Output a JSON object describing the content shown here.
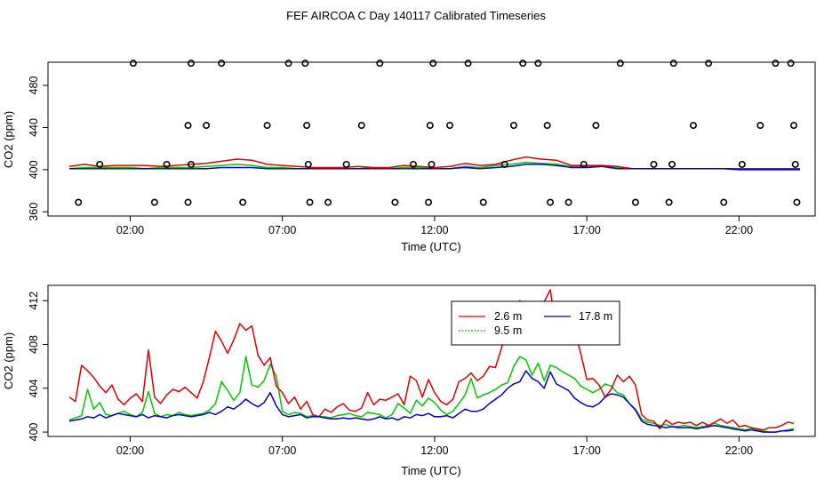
{
  "title": "FEF AIRCOA C  Day 140117  Calibrated Timeseries",
  "colors": {
    "s1": "#e00000",
    "s2": "#00c800",
    "s3": "#0000c8",
    "axis": "#000000"
  },
  "chart_data": [
    {
      "type": "line",
      "title": "",
      "xlabel": "Time (UTC)",
      "ylabel": "CO2 (ppm)",
      "xlim": [
        -0.7,
        24.5
      ],
      "ylim": [
        356,
        502
      ],
      "x_ticks": [
        2,
        7,
        12,
        17,
        22
      ],
      "x_tick_labels": [
        "02:00",
        "07:00",
        "12:00",
        "17:00",
        "22:00"
      ],
      "y_ticks": [
        360,
        400,
        440,
        480
      ],
      "y_tick_labels": [
        "360",
        "400",
        "440",
        "480"
      ],
      "calibration_points": {
        "marker": "open-circle",
        "x": [
          0.3,
          1.0,
          2.1,
          2.8,
          3.2,
          3.9,
          3.9,
          4.0,
          4.0,
          4.5,
          5.0,
          5.7,
          6.5,
          7.2,
          7.75,
          7.8,
          7.85,
          7.9,
          8.5,
          9.1,
          9.6,
          10.2,
          10.7,
          11.3,
          11.8,
          11.85,
          11.9,
          11.95,
          12.5,
          13.1,
          13.6,
          14.3,
          14.6,
          14.9,
          15.4,
          15.7,
          15.8,
          16.4,
          16.9,
          17.3,
          18.1,
          18.6,
          19.2,
          19.7,
          19.8,
          19.85,
          20.5,
          21.0,
          21.5,
          22.1,
          22.7,
          23.2,
          23.7,
          23.8,
          23.85,
          23.9
        ],
        "y": [
          369,
          405,
          501,
          369,
          405,
          369,
          442,
          405,
          501,
          442,
          501,
          369,
          442,
          501,
          501,
          442,
          405,
          369,
          369,
          405,
          442,
          501,
          369,
          405,
          369,
          442,
          405,
          501,
          442,
          501,
          369,
          405,
          442,
          501,
          501,
          442,
          369,
          369,
          405,
          442,
          501,
          369,
          405,
          369,
          405,
          501,
          442,
          501,
          369,
          405,
          442,
          501,
          501,
          442,
          405,
          369
        ]
      },
      "x": [
        0.0,
        0.5,
        1.0,
        1.5,
        2.0,
        2.5,
        3.0,
        3.5,
        4.0,
        4.5,
        5.0,
        5.5,
        6.0,
        6.5,
        7.0,
        7.5,
        8.0,
        8.5,
        9.0,
        9.5,
        10.0,
        10.5,
        11.0,
        11.5,
        12.0,
        12.5,
        13.0,
        13.5,
        14.0,
        14.5,
        15.0,
        15.5,
        16.0,
        16.5,
        17.0,
        17.5,
        18.0,
        18.5,
        19.0,
        19.5,
        20.0,
        20.5,
        21.0,
        21.5,
        22.0,
        22.5,
        23.0,
        23.5,
        24.0
      ],
      "series": [
        {
          "name": "2.6 m",
          "values": [
            403,
            405,
            403,
            404,
            404,
            404,
            403,
            404,
            405,
            406,
            408,
            410,
            409,
            405,
            404,
            403,
            402,
            402,
            402,
            403,
            402,
            402,
            404,
            403,
            402,
            403,
            406,
            404,
            405,
            409,
            412,
            410,
            409,
            404,
            404,
            404,
            403,
            401,
            401,
            401,
            401,
            401,
            401,
            401,
            401,
            401,
            401,
            401,
            401
          ]
        },
        {
          "name": "9.5 m",
          "values": [
            401,
            402,
            402,
            402,
            402,
            401,
            402,
            402,
            402,
            403,
            404,
            405,
            404,
            402,
            402,
            401,
            401,
            401,
            401,
            401,
            402,
            401,
            402,
            402,
            401,
            401,
            403,
            402,
            404,
            405,
            407,
            406,
            405,
            403,
            403,
            404,
            402,
            401,
            401,
            401,
            401,
            401,
            401,
            401,
            400,
            400,
            400,
            400,
            400
          ]
        },
        {
          "name": "17.8 m",
          "values": [
            401,
            401,
            401,
            401,
            401,
            401,
            401,
            401,
            401,
            401,
            402,
            402,
            402,
            401,
            401,
            401,
            401,
            401,
            401,
            401,
            401,
            401,
            401,
            401,
            401,
            401,
            402,
            401,
            402,
            403,
            405,
            405,
            404,
            402,
            402,
            403,
            401,
            401,
            401,
            401,
            401,
            401,
            401,
            401,
            400,
            400,
            400,
            400,
            400
          ]
        }
      ]
    },
    {
      "type": "line",
      "title": "",
      "xlabel": "Time (UTC)",
      "ylabel": "CO2 (ppm)",
      "xlim": [
        -0.7,
        24.5
      ],
      "ylim": [
        399.6,
        413.4
      ],
      "x_ticks": [
        2,
        7,
        12,
        17,
        22
      ],
      "x_tick_labels": [
        "02:00",
        "07:00",
        "12:00",
        "17:00",
        "22:00"
      ],
      "y_ticks": [
        400,
        404,
        408,
        412
      ],
      "y_tick_labels": [
        "400",
        "404",
        "408",
        "412"
      ],
      "legend": {
        "position": "top-right-inset",
        "entries": [
          "2.6 m",
          "17.8 m",
          "9.5 m"
        ]
      },
      "x": [
        0.0,
        0.2,
        0.4,
        0.6,
        0.8,
        1.0,
        1.2,
        1.4,
        1.6,
        1.8,
        2.0,
        2.2,
        2.4,
        2.6,
        2.8,
        3.0,
        3.2,
        3.4,
        3.6,
        3.8,
        4.0,
        4.2,
        4.4,
        4.6,
        4.8,
        5.0,
        5.2,
        5.4,
        5.6,
        5.8,
        6.0,
        6.2,
        6.4,
        6.6,
        6.8,
        7.0,
        7.2,
        7.4,
        7.6,
        7.8,
        8.0,
        8.2,
        8.4,
        8.6,
        8.8,
        9.0,
        9.2,
        9.4,
        9.6,
        9.8,
        10.0,
        10.2,
        10.4,
        10.6,
        10.8,
        11.0,
        11.2,
        11.4,
        11.6,
        11.8,
        12.0,
        12.2,
        12.4,
        12.6,
        12.8,
        13.0,
        13.2,
        13.4,
        13.6,
        13.8,
        14.0,
        14.2,
        14.4,
        14.6,
        14.8,
        15.0,
        15.2,
        15.4,
        15.6,
        15.8,
        16.0,
        16.2,
        16.4,
        16.6,
        16.8,
        17.0,
        17.2,
        17.4,
        17.6,
        17.8,
        18.0,
        18.2,
        18.4,
        18.6,
        18.8,
        19.0,
        19.2,
        19.4,
        19.6,
        19.8,
        20.0,
        20.2,
        20.4,
        20.6,
        20.8,
        21.0,
        21.2,
        21.4,
        21.6,
        21.8,
        22.0,
        22.2,
        22.4,
        22.6,
        22.8,
        23.0,
        23.2,
        23.4,
        23.6,
        23.8
      ],
      "series": [
        {
          "name": "2.6 m",
          "values": [
            403.2,
            402.8,
            406.1,
            405.6,
            405.0,
            404.2,
            403.6,
            404.3,
            403.0,
            402.5,
            403.1,
            403.5,
            402.8,
            407.5,
            403.2,
            402.6,
            403.4,
            403.9,
            403.7,
            404.1,
            403.6,
            403.1,
            404.6,
            406.8,
            409.2,
            408.3,
            407.2,
            408.4,
            409.9,
            409.3,
            409.7,
            407.0,
            406.1,
            406.8,
            404.2,
            403.6,
            402.6,
            403.2,
            402.1,
            402.8,
            401.6,
            401.4,
            402.1,
            401.8,
            402.3,
            402.6,
            402.0,
            401.9,
            402.2,
            403.6,
            402.5,
            403.0,
            402.9,
            403.2,
            403.5,
            402.5,
            405.1,
            404.7,
            403.2,
            404.8,
            403.6,
            402.8,
            402.5,
            403.0,
            404.6,
            404.9,
            405.4,
            404.7,
            405.1,
            406.0,
            405.9,
            407.7,
            409.5,
            408.8,
            412.0,
            409.2,
            411.3,
            410.4,
            411.9,
            413.0,
            409.2,
            409.5,
            409.7,
            409.3,
            407.2,
            404.8,
            404.9,
            404.3,
            403.2,
            403.9,
            405.2,
            404.6,
            405.1,
            404.3,
            401.6,
            401.1,
            401.0,
            400.3,
            401.1,
            400.7,
            400.9,
            400.8,
            400.9,
            400.6,
            400.9,
            400.6,
            400.9,
            401.2,
            400.8,
            401.1,
            400.5,
            400.6,
            400.4,
            400.3,
            400.2,
            400.4,
            400.4,
            400.6,
            400.9,
            400.8
          ]
        },
        {
          "name": "9.5 m",
          "values": [
            401.1,
            401.3,
            401.5,
            403.9,
            402.1,
            402.7,
            401.6,
            401.5,
            401.7,
            401.9,
            401.6,
            401.4,
            401.8,
            403.7,
            401.7,
            401.4,
            401.6,
            401.5,
            401.8,
            401.6,
            401.5,
            401.6,
            401.7,
            402.0,
            402.6,
            404.6,
            403.8,
            402.9,
            403.6,
            406.9,
            404.3,
            404.1,
            404.7,
            406.2,
            405.1,
            401.9,
            401.6,
            401.8,
            401.7,
            401.4,
            401.5,
            401.4,
            401.4,
            401.3,
            401.5,
            401.6,
            401.7,
            401.5,
            401.4,
            401.8,
            401.7,
            401.6,
            401.3,
            401.6,
            402.6,
            402.2,
            401.7,
            402.9,
            402.4,
            403.1,
            402.7,
            402.0,
            401.6,
            401.9,
            402.6,
            403.4,
            404.9,
            403.1,
            403.4,
            403.6,
            403.9,
            404.3,
            404.5,
            406.0,
            406.9,
            406.6,
            405.2,
            406.3,
            404.7,
            406.1,
            405.9,
            405.5,
            405.2,
            404.9,
            404.2,
            403.9,
            403.6,
            403.9,
            404.4,
            404.2,
            403.6,
            403.4,
            402.6,
            402.1,
            401.2,
            400.9,
            400.8,
            400.6,
            400.7,
            400.5,
            400.5,
            400.6,
            400.5,
            400.4,
            400.5,
            400.6,
            400.8,
            400.6,
            400.5,
            400.4,
            400.3,
            400.2,
            400.3,
            400.2,
            400.1,
            400.0,
            400.0,
            400.1,
            400.2,
            400.3
          ]
        },
        {
          "name": "17.8 m",
          "values": [
            401.0,
            401.1,
            401.2,
            401.4,
            401.3,
            401.6,
            401.3,
            401.5,
            401.7,
            401.6,
            401.5,
            401.4,
            401.6,
            401.3,
            401.5,
            401.4,
            401.3,
            401.5,
            401.6,
            401.5,
            401.4,
            401.5,
            401.6,
            401.8,
            401.6,
            401.9,
            402.3,
            402.1,
            402.5,
            403.0,
            402.6,
            402.3,
            402.7,
            403.6,
            402.4,
            401.6,
            401.4,
            401.5,
            401.6,
            401.3,
            401.4,
            401.4,
            401.3,
            401.2,
            401.2,
            401.3,
            401.2,
            401.3,
            401.2,
            401.1,
            401.2,
            401.4,
            401.2,
            401.3,
            401.1,
            401.4,
            401.3,
            401.6,
            401.5,
            401.7,
            401.4,
            401.4,
            401.5,
            401.3,
            401.7,
            402.1,
            401.9,
            401.9,
            402.1,
            402.6,
            403.0,
            403.4,
            404.0,
            404.4,
            404.6,
            405.6,
            404.9,
            404.6,
            404.0,
            405.5,
            404.4,
            404.1,
            403.8,
            403.1,
            402.7,
            402.4,
            402.3,
            402.6,
            403.2,
            403.5,
            403.4,
            403.2,
            402.6,
            402.0,
            401.0,
            400.7,
            400.6,
            400.5,
            400.4,
            400.5,
            400.4,
            400.4,
            400.4,
            400.3,
            400.4,
            400.5,
            400.6,
            400.5,
            400.4,
            400.3,
            400.2,
            400.1,
            400.2,
            400.1,
            400.0,
            400.0,
            400.0,
            400.1,
            400.1,
            400.2
          ]
        }
      ]
    }
  ]
}
